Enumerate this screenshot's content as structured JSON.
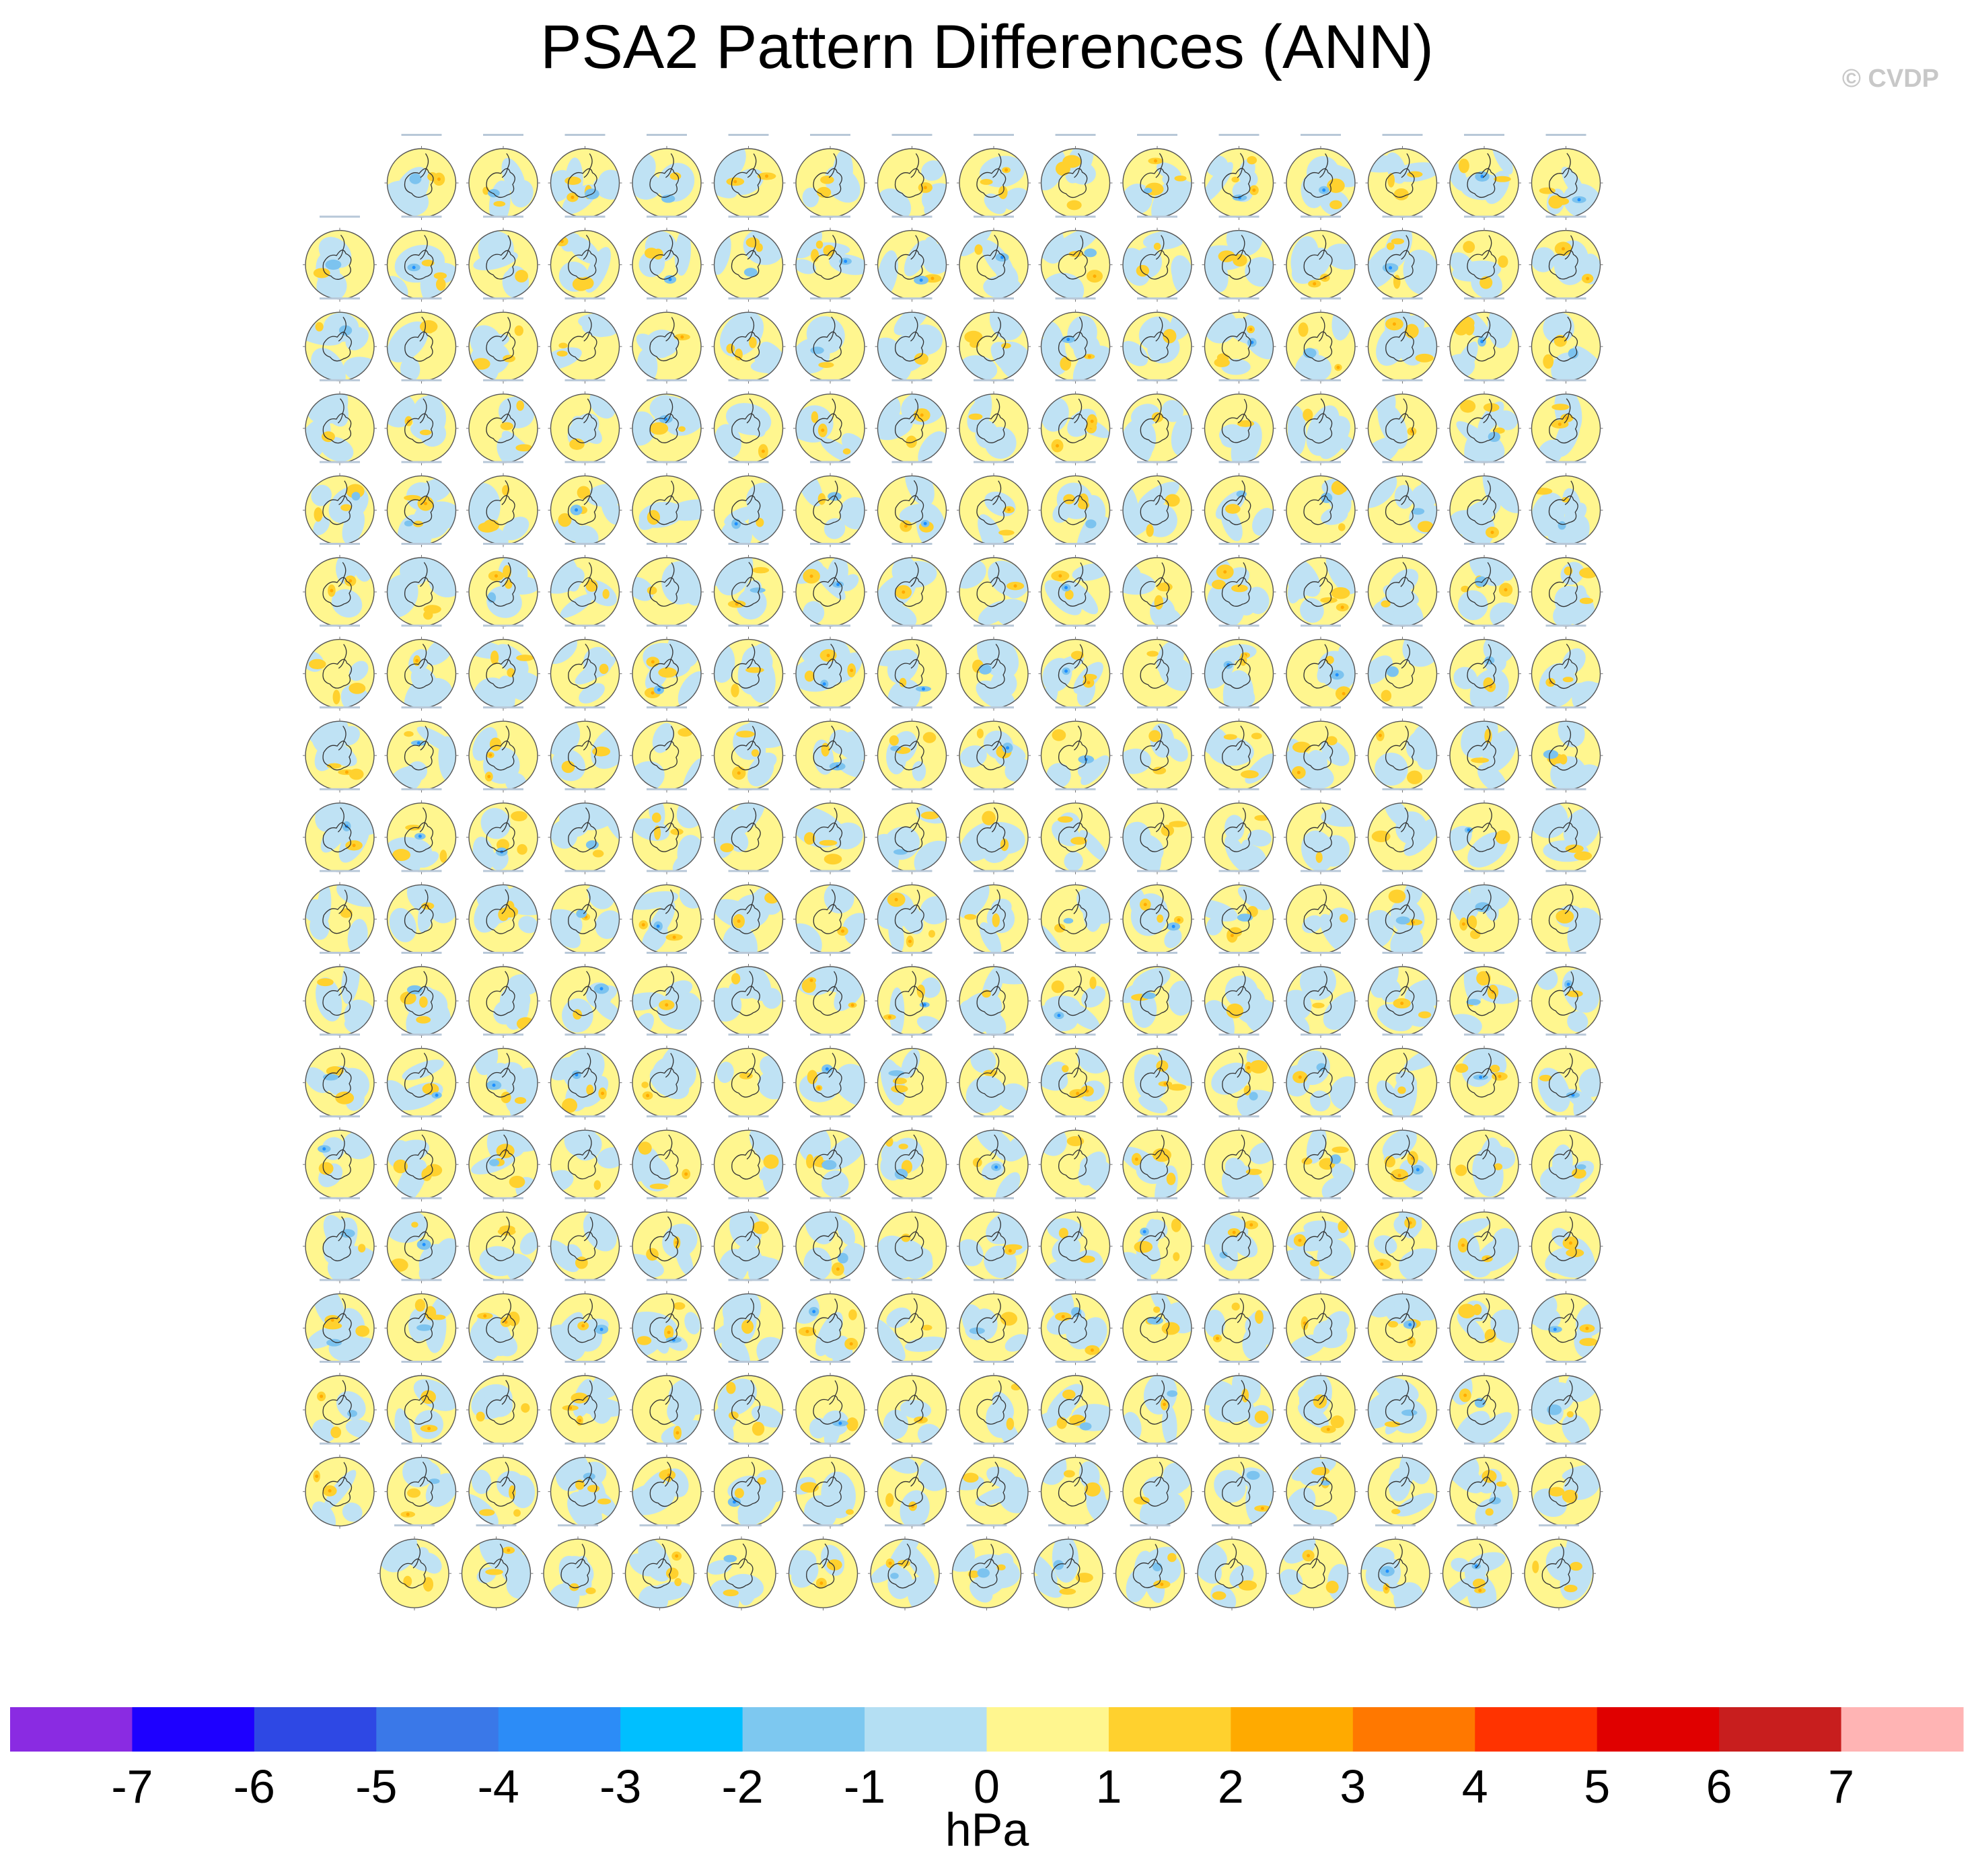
{
  "title": "PSA2 Pattern Differences (ANN)",
  "copyright": "© CVDP",
  "grid": {
    "row_counts": [
      15,
      16,
      16,
      16,
      16,
      16,
      16,
      16,
      16,
      16,
      16,
      16,
      16,
      16,
      16,
      16,
      16,
      15
    ],
    "row_alignment": [
      "right",
      "full",
      "full",
      "full",
      "full",
      "full",
      "full",
      "full",
      "full",
      "full",
      "full",
      "full",
      "full",
      "full",
      "full",
      "full",
      "full",
      "center"
    ]
  },
  "panel_palette": {
    "ocean": "#bfe2f4",
    "positive": "#fff68f",
    "pos_strong": "#ffd12e",
    "neg_strong": "#7cc3ef",
    "neg_core": "#1e90ff",
    "pos_core": "#ffaa00",
    "coast": "#333333"
  },
  "colorbar": {
    "units": "hPa",
    "tick_labels": [
      "-7",
      "-6",
      "-5",
      "-4",
      "-3",
      "-2",
      "-1",
      "0",
      "1",
      "2",
      "3",
      "4",
      "5",
      "6",
      "7"
    ],
    "colors": [
      "#8a2be2",
      "#1e00ff",
      "#2e48e4",
      "#3a78e8",
      "#2c8cf7",
      "#00bfff",
      "#7dc8f0",
      "#b4dff3",
      "#fff68f",
      "#ffd12e",
      "#ffaa00",
      "#ff7800",
      "#ff3300",
      "#e00000",
      "#c81e1e",
      "#ffb4b4"
    ]
  }
}
